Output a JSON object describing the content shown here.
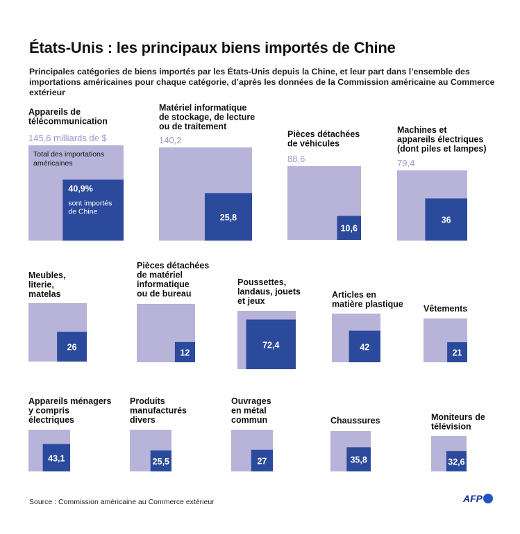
{
  "title": "États-Unis : les principaux biens importés de Chine",
  "subtitle": "Principales catégories de biens importés par les États-Unis depuis la Chine, et leur part dans l’ensemble des importations américaines pour chaque catégorie, d’après les données de la Commission américaine au Commerce extérieur",
  "source": "Source : Commission américaine au Commerce extérieur",
  "logo_text": "AFP",
  "colors": {
    "total": "#b8b3d9",
    "china": "#2b4a9c",
    "total_label": "#9f97cc"
  },
  "chart_data": {
    "type": "nested-square",
    "unit": "milliards de $",
    "legend_total_label": "Total des importations américaines",
    "legend_share_suffix": "sont importés de Chine",
    "items": [
      {
        "label": [
          "Appareils de",
          "télécommunication"
        ],
        "total": 145.6,
        "total_text": "145,6 milliards de $",
        "china_share_pct": 40.9,
        "share_text": "40,9%"
      },
      {
        "label": [
          "Matériel informatique",
          "de stockage, de lecture",
          "ou de traitement"
        ],
        "total": 140.2,
        "total_text": "140,2",
        "china_share_pct": 25.8,
        "share_text": "25,8"
      },
      {
        "label": [
          "Pièces détachées",
          "de véhicules"
        ],
        "total": 88.6,
        "total_text": "88,6",
        "china_share_pct": 10.6,
        "share_text": "10,6"
      },
      {
        "label": [
          "Machines et",
          "appareils électriques",
          "(dont piles et lampes)"
        ],
        "total": 79.4,
        "total_text": "79,4",
        "china_share_pct": 36,
        "share_text": "36"
      },
      {
        "label": [
          "Meubles,",
          "literie,",
          "matelas"
        ],
        "china_share_pct": 26,
        "share_text": "26"
      },
      {
        "label": [
          "Pièces détachées",
          "de matériel",
          "informatique",
          "ou de bureau"
        ],
        "china_share_pct": 12,
        "share_text": "12"
      },
      {
        "label": [
          "Poussettes,",
          "landaus, jouets",
          "et jeux"
        ],
        "china_share_pct": 72.4,
        "share_text": "72,4"
      },
      {
        "label": [
          "Articles en",
          "matière plastique"
        ],
        "china_share_pct": 42,
        "share_text": "42"
      },
      {
        "label": [
          "Vêtements"
        ],
        "china_share_pct": 21,
        "share_text": "21"
      },
      {
        "label": [
          "Appareils ménagers",
          "y compris",
          "électriques"
        ],
        "china_share_pct": 43.1,
        "share_text": "43,1"
      },
      {
        "label": [
          "Produits",
          "manufacturés",
          "divers"
        ],
        "china_share_pct": 25.5,
        "share_text": "25,5"
      },
      {
        "label": [
          "Ouvrages",
          "en métal",
          "commun"
        ],
        "china_share_pct": 27,
        "share_text": "27"
      },
      {
        "label": [
          "Chaussures"
        ],
        "china_share_pct": 35.8,
        "share_text": "35,8"
      },
      {
        "label": [
          "Moniteurs de",
          "télévision"
        ],
        "china_share_pct": 32.6,
        "share_text": "32,6"
      }
    ]
  }
}
